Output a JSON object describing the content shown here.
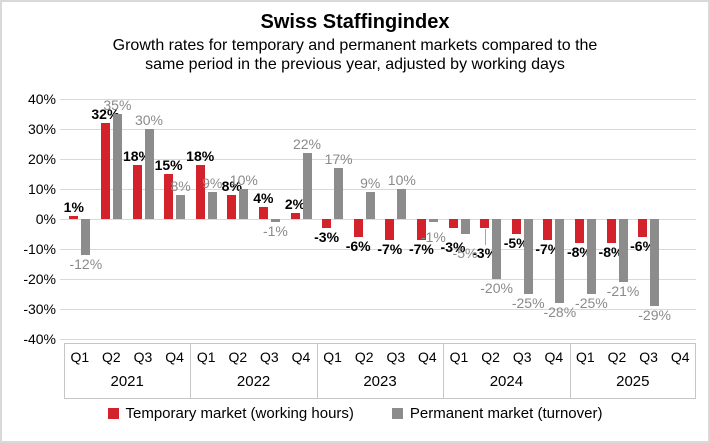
{
  "page": {
    "title": "Swiss Staffingindex",
    "subtitle_lines": [
      "Growth rates for temporary and permanent markets compared to the",
      "same period in the previous year, adjusted by working days"
    ]
  },
  "chart_data": {
    "type": "bar",
    "title": "Swiss Staffingindex",
    "subtitle": "Growth rates for temporary and permanent markets compared to the same period in the previous year, adjusted by working days",
    "unit": "%",
    "grid": true,
    "legend_position": "bottom",
    "y_axis": {
      "min": -40,
      "max": 40,
      "step": 10,
      "tick_labels": [
        "40%",
        "30%",
        "20%",
        "10%",
        "0%",
        "-10%",
        "-20%",
        "-30%",
        "-40%"
      ]
    },
    "years": [
      "2021",
      "2022",
      "2023",
      "2024",
      "2025"
    ],
    "quarter_labels": [
      "Q1",
      "Q2",
      "Q3",
      "Q4"
    ],
    "categories": [
      "2021 Q1",
      "2021 Q2",
      "2021 Q3",
      "2021 Q4",
      "2022 Q1",
      "2022 Q2",
      "2022 Q3",
      "2022 Q4",
      "2023 Q1",
      "2023 Q2",
      "2023 Q3",
      "2023 Q4",
      "2024 Q1",
      "2024 Q2",
      "2024 Q3",
      "2024 Q4",
      "2025 Q1",
      "2025 Q2",
      "2025 Q3",
      "2025 Q4"
    ],
    "series": [
      {
        "name": "Temporary market (working hours)",
        "color": "#d4222d",
        "label_style": "bold-black",
        "values": [
          1,
          32,
          18,
          15,
          18,
          8,
          4,
          2,
          -3,
          -6,
          -7,
          -7,
          -3,
          -3,
          -5,
          -7,
          -8,
          -8,
          -6,
          null
        ]
      },
      {
        "name": "Permanent market (turnover)",
        "color": "#8c8c8c",
        "label_style": "gray",
        "values": [
          -12,
          35,
          30,
          8,
          9,
          10,
          -1,
          22,
          17,
          9,
          10,
          -1,
          -5,
          -20,
          -25,
          -28,
          -25,
          -21,
          -29,
          null
        ]
      }
    ],
    "label_adjustments": [
      {
        "series": 0,
        "index": 12,
        "dy": 10
      },
      {
        "series": 0,
        "index": 13,
        "dy": 16,
        "leader": true
      },
      {
        "series": 1,
        "index": 12,
        "dy": 10
      },
      {
        "series": 1,
        "index": 11,
        "dy": 6
      }
    ]
  },
  "legend": {
    "items": [
      {
        "label": "Temporary market (working hours)",
        "color": "#d4222d"
      },
      {
        "label": "Permanent market (turnover)",
        "color": "#8c8c8c"
      }
    ]
  },
  "colors": {
    "temporary": "#d4222d",
    "permanent": "#8c8c8c",
    "grid": "#d9d9d9",
    "axis_border": "#c6c6c6",
    "gray_label": "#8a8a8a",
    "text": "#000000"
  }
}
